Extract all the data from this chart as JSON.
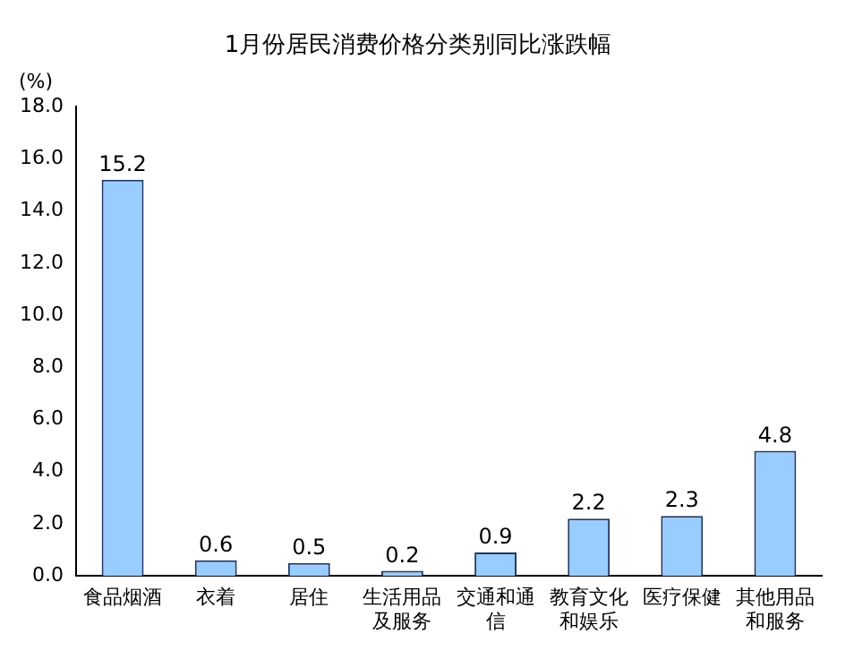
{
  "chart_data": {
    "type": "bar",
    "title": "1月份居民消费价格分类别同比涨跌幅",
    "ylabel": "(%)",
    "categories": [
      "食品烟酒",
      "衣着",
      "居住",
      "生活用品及服务",
      "交通和通信",
      "教育文化和娱乐",
      "医疗保健",
      "其他用品和服务"
    ],
    "values": [
      15.2,
      0.6,
      0.5,
      0.2,
      0.9,
      2.2,
      2.3,
      4.8
    ],
    "color": "#99ccff",
    "ylim": [
      0,
      18
    ],
    "yticks": [
      {
        "value": 0,
        "label": "0.0"
      },
      {
        "value": 2,
        "label": "2.0"
      },
      {
        "value": 4,
        "label": "4.0"
      },
      {
        "value": 6,
        "label": "6.0"
      },
      {
        "value": 8,
        "label": "8.0"
      },
      {
        "value": 10,
        "label": "10.0"
      },
      {
        "value": 12,
        "label": "12.0"
      },
      {
        "value": 14,
        "label": "14.0"
      },
      {
        "value": 16,
        "label": "16.0"
      },
      {
        "value": 18,
        "label": "18.0"
      }
    ],
    "data_labels": true,
    "grid": false,
    "legend": false
  }
}
